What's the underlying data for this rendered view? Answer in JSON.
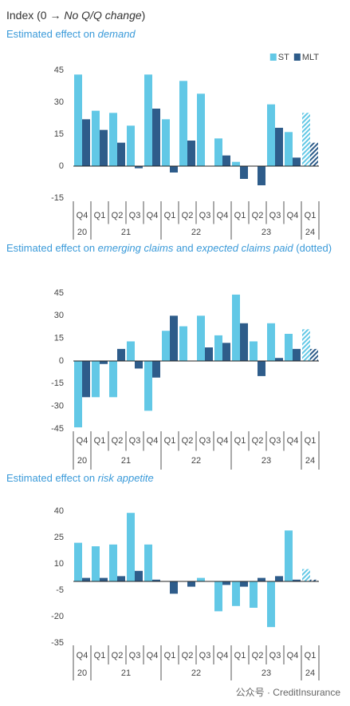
{
  "title": [
    "Index (0 → ",
    "No Q/Q change",
    ")"
  ],
  "watermark": "公众号 · CreditInsurance",
  "chart_data": [
    {
      "type": "bar",
      "title": [
        "Estimated effect on ",
        "demand"
      ],
      "categories": [
        "Q4",
        "Q1",
        "Q2",
        "Q3",
        "Q4",
        "Q1",
        "Q2",
        "Q3",
        "Q4",
        "Q1",
        "Q2",
        "Q3",
        "Q4",
        "Q1"
      ],
      "years": [
        "20",
        "21",
        "21",
        "21",
        "21",
        "22",
        "22",
        "22",
        "22",
        "23",
        "23",
        "23",
        "23",
        "24"
      ],
      "hatched": [
        false,
        false,
        false,
        false,
        false,
        false,
        false,
        false,
        false,
        false,
        false,
        false,
        false,
        true
      ],
      "series": [
        {
          "name": "ST",
          "color": "#62c8e6",
          "values": [
            43,
            26,
            25,
            19,
            43,
            22,
            40,
            34,
            13,
            2,
            0,
            29,
            16,
            25
          ]
        },
        {
          "name": "MLT",
          "color": "#2e5c8a",
          "values": [
            22,
            17,
            11,
            -1,
            27,
            -3,
            12,
            0,
            5,
            -6,
            -9,
            18,
            4,
            11
          ]
        }
      ],
      "ylim": [
        -15,
        45
      ],
      "yticks": [
        -15,
        0,
        15,
        30,
        45
      ],
      "legend": "top-right"
    },
    {
      "type": "bar",
      "title": [
        "Estimated effect on ",
        "emerging claims",
        " and ",
        "expected claims paid",
        " (dotted)"
      ],
      "categories": [
        "Q4",
        "Q1",
        "Q2",
        "Q3",
        "Q4",
        "Q1",
        "Q2",
        "Q3",
        "Q4",
        "Q1",
        "Q2",
        "Q3",
        "Q4",
        "Q1"
      ],
      "years": [
        "20",
        "21",
        "21",
        "21",
        "21",
        "22",
        "22",
        "22",
        "22",
        "23",
        "23",
        "23",
        "23",
        "24"
      ],
      "hatched": [
        false,
        false,
        false,
        false,
        false,
        false,
        false,
        false,
        false,
        false,
        false,
        false,
        false,
        true
      ],
      "series": [
        {
          "color": "#62c8e6",
          "values": [
            -44,
            -24,
            -24,
            13,
            -33,
            20,
            23,
            30,
            17,
            44,
            13,
            25,
            18,
            21
          ]
        },
        {
          "color": "#2e5c8a",
          "values": [
            -24,
            -2,
            8,
            -5,
            -11,
            30,
            0,
            9,
            12,
            25,
            -10,
            2,
            8,
            8
          ]
        }
      ],
      "ylim": [
        -45,
        45
      ],
      "yticks": [
        -45,
        -30,
        -15,
        0,
        15,
        30,
        45
      ]
    },
    {
      "type": "bar",
      "title": [
        "Estimated effect on ",
        "risk appetite"
      ],
      "categories": [
        "Q4",
        "Q1",
        "Q2",
        "Q3",
        "Q4",
        "Q1",
        "Q2",
        "Q3",
        "Q4",
        "Q1",
        "Q2",
        "Q3",
        "Q4",
        "Q1"
      ],
      "years": [
        "20",
        "21",
        "21",
        "21",
        "21",
        "22",
        "22",
        "22",
        "22",
        "23",
        "23",
        "23",
        "23",
        "24"
      ],
      "hatched": [
        false,
        false,
        false,
        false,
        false,
        false,
        false,
        false,
        false,
        false,
        false,
        false,
        false,
        true
      ],
      "series": [
        {
          "color": "#62c8e6",
          "values": [
            22,
            20,
            21,
            39,
            21,
            0,
            0,
            2,
            -17,
            -14,
            -15,
            -26,
            29,
            7
          ]
        },
        {
          "color": "#2e5c8a",
          "values": [
            2,
            2,
            3,
            6,
            1,
            -7,
            -3,
            0,
            -2,
            -3,
            2,
            3,
            1,
            1
          ]
        }
      ],
      "ylim": [
        -35,
        40
      ],
      "yticks": [
        -35,
        -20,
        -5,
        10,
        25,
        40
      ]
    }
  ]
}
